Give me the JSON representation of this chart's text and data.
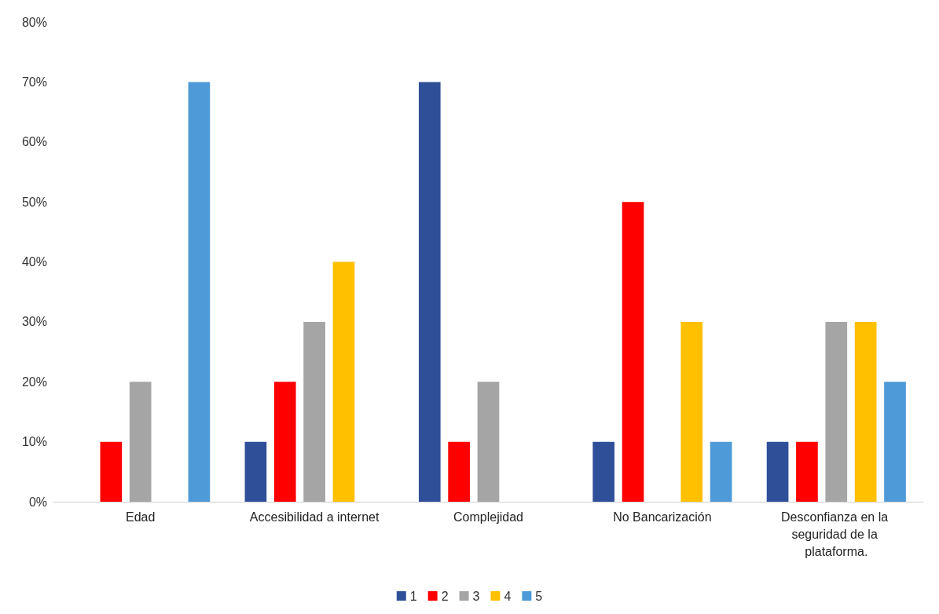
{
  "chart_data": {
    "type": "bar",
    "categories": [
      "Edad",
      "Accesibilidad a internet",
      "Complejidad",
      "No Bancarización",
      "Desconfianza en la seguridad de la plataforma."
    ],
    "series": [
      {
        "name": "1",
        "color": "#2f4f98",
        "values": [
          0,
          10,
          70,
          10,
          10
        ]
      },
      {
        "name": "2",
        "color": "#ff0000",
        "values": [
          10,
          20,
          10,
          50,
          10
        ]
      },
      {
        "name": "3",
        "color": "#a5a5a5",
        "values": [
          20,
          30,
          20,
          0,
          30
        ]
      },
      {
        "name": "4",
        "color": "#ffc000",
        "values": [
          0,
          40,
          0,
          30,
          30
        ]
      },
      {
        "name": "5",
        "color": "#4e9ad8",
        "values": [
          70,
          0,
          0,
          10,
          20
        ]
      }
    ],
    "ylim": [
      0,
      80
    ],
    "yticks": [
      {
        "value": 0,
        "label": "0%"
      },
      {
        "value": 10,
        "label": "10%"
      },
      {
        "value": 20,
        "label": "20%"
      },
      {
        "value": 30,
        "label": "30%"
      },
      {
        "value": 40,
        "label": "40%"
      },
      {
        "value": 50,
        "label": "50%"
      },
      {
        "value": 60,
        "label": "60%"
      },
      {
        "value": 70,
        "label": "70%"
      },
      {
        "value": 80,
        "label": "80%"
      }
    ],
    "grid": false,
    "legend": "bottom"
  }
}
